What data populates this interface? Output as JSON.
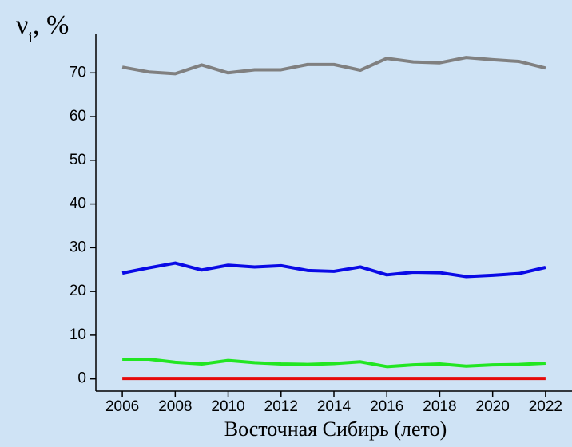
{
  "chart_data": {
    "type": "line",
    "ylabel": {
      "symbol": "ν",
      "subscript": "i",
      "suffix": ", %"
    },
    "xlabel": "Восточная Сибирь (лето)",
    "x": [
      2006,
      2007,
      2008,
      2009,
      2010,
      2011,
      2012,
      2013,
      2014,
      2015,
      2016,
      2017,
      2018,
      2019,
      2020,
      2021,
      2022
    ],
    "series": [
      {
        "color": "#808080",
        "values": [
          71.3,
          70.2,
          69.8,
          71.8,
          70.0,
          70.7,
          70.7,
          71.9,
          71.9,
          70.6,
          73.3,
          72.5,
          72.3,
          73.5,
          73.0,
          72.6,
          71.1
        ]
      },
      {
        "color": "#0a0ae6",
        "values": [
          24.2,
          25.4,
          26.5,
          24.9,
          26.0,
          25.6,
          25.9,
          24.8,
          24.6,
          25.6,
          23.8,
          24.4,
          24.3,
          23.4,
          23.7,
          24.1,
          25.5
        ]
      },
      {
        "color": "#22e622",
        "values": [
          4.5,
          4.5,
          3.8,
          3.4,
          4.2,
          3.7,
          3.4,
          3.3,
          3.5,
          3.9,
          2.8,
          3.2,
          3.4,
          2.9,
          3.2,
          3.3,
          3.6
        ]
      },
      {
        "color": "#e60a0a",
        "values": [
          0.1,
          0.1,
          0.1,
          0.1,
          0.1,
          0.1,
          0.1,
          0.1,
          0.1,
          0.1,
          0.1,
          0.1,
          0.1,
          0.1,
          0.1,
          0.1,
          0.1
        ]
      }
    ],
    "xlim": [
      2005,
      2023
    ],
    "xticks": [
      2006,
      2008,
      2010,
      2012,
      2014,
      2016,
      2018,
      2020,
      2022
    ],
    "ylim": [
      -2.8,
      79
    ],
    "yticks": [
      0,
      10,
      20,
      30,
      40,
      50,
      60,
      70
    ],
    "grid": false
  }
}
